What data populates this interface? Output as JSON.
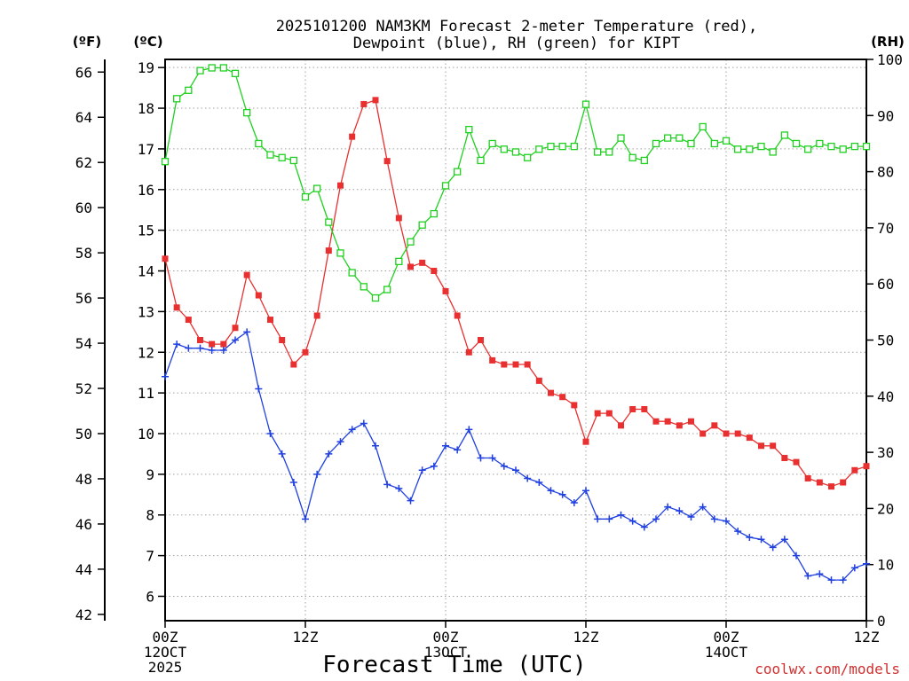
{
  "title_line1": "2025101200 NAM3KM Forecast 2-meter Temperature (red),",
  "title_line2": "Dewpoint (blue), RH (green) for KIPT",
  "credit": "coolwx.com/models",
  "chart_data": {
    "type": "line",
    "xlabel": "Forecast Time (UTC)",
    "x_hours": [
      0,
      1,
      2,
      3,
      4,
      5,
      6,
      7,
      8,
      9,
      10,
      11,
      12,
      13,
      14,
      15,
      16,
      17,
      18,
      19,
      20,
      21,
      22,
      23,
      24,
      25,
      26,
      27,
      28,
      29,
      30,
      31,
      32,
      33,
      34,
      35,
      36,
      37,
      38,
      39,
      40,
      41,
      42,
      43,
      44,
      45,
      46,
      47,
      48,
      49,
      50,
      51,
      52,
      53,
      54,
      55,
      56,
      57,
      58,
      59,
      60
    ],
    "xlim": [
      0,
      60
    ],
    "x_ticks": [
      {
        "hour": 0,
        "lines": [
          "00Z",
          "12OCT",
          "2025"
        ]
      },
      {
        "hour": 12,
        "lines": [
          "12Z"
        ]
      },
      {
        "hour": 24,
        "lines": [
          "00Z",
          "13OCT"
        ]
      },
      {
        "hour": 36,
        "lines": [
          "12Z"
        ]
      },
      {
        "hour": 48,
        "lines": [
          "00Z",
          "14OCT"
        ]
      },
      {
        "hour": 60,
        "lines": [
          "12Z"
        ]
      }
    ],
    "left_axis_c": {
      "label": "(ºC)",
      "ticks": [
        6,
        7,
        8,
        9,
        10,
        11,
        12,
        13,
        14,
        15,
        16,
        17,
        18,
        19
      ],
      "range": [
        5.4,
        19.2
      ]
    },
    "left_axis_f": {
      "label": "(ºF)",
      "ticks": [
        42,
        44,
        46,
        48,
        50,
        52,
        54,
        56,
        58,
        60,
        62,
        64,
        66
      ]
    },
    "right_axis": {
      "label": "(RH)",
      "ticks": [
        0,
        10,
        20,
        30,
        40,
        50,
        60,
        70,
        80,
        90,
        100
      ],
      "range": [
        0,
        100
      ]
    },
    "series": [
      {
        "name": "2-meter Temperature",
        "color": "#e83030",
        "axis": "C",
        "marker": "filled-square",
        "values": [
          14.3,
          13.1,
          12.8,
          12.3,
          12.2,
          12.2,
          12.6,
          13.9,
          13.4,
          12.8,
          12.3,
          11.7,
          12.0,
          12.9,
          14.5,
          16.1,
          17.3,
          18.1,
          18.2,
          16.7,
          15.3,
          14.1,
          14.2,
          14.0,
          13.5,
          12.9,
          12.0,
          12.3,
          11.8,
          11.7,
          11.7,
          11.7,
          11.3,
          11.0,
          10.9,
          10.7,
          9.8,
          10.5,
          10.5,
          10.2,
          10.6,
          10.6,
          10.3,
          10.3,
          10.2,
          10.3,
          10.0,
          10.2,
          10.0,
          10.0,
          9.9,
          9.7,
          9.7,
          9.4,
          9.3,
          8.9,
          8.8,
          8.7,
          8.8,
          9.1,
          9.2
        ]
      },
      {
        "name": "Dewpoint",
        "color": "#2040e0",
        "axis": "C",
        "marker": "plus",
        "values": [
          11.4,
          12.2,
          12.1,
          12.1,
          12.05,
          12.05,
          12.3,
          12.5,
          11.1,
          10.0,
          9.5,
          8.8,
          7.9,
          9.0,
          9.5,
          9.8,
          10.1,
          10.25,
          9.7,
          8.75,
          8.65,
          8.35,
          9.1,
          9.2,
          9.7,
          9.6,
          10.1,
          9.4,
          9.4,
          9.2,
          9.1,
          8.9,
          8.8,
          8.6,
          8.5,
          8.3,
          8.6,
          7.9,
          7.9,
          8.0,
          7.85,
          7.7,
          7.9,
          8.2,
          8.1,
          7.95,
          8.2,
          7.9,
          7.85,
          7.6,
          7.45,
          7.4,
          7.2,
          7.4,
          7.0,
          6.5,
          6.55,
          6.4,
          6.4,
          6.7,
          6.8
        ]
      },
      {
        "name": "RH",
        "color": "#20d020",
        "axis": "RH",
        "marker": "open-square",
        "values": [
          81.8,
          93.0,
          94.5,
          98.0,
          98.5,
          98.5,
          97.5,
          90.5,
          85.0,
          83.0,
          82.5,
          82.0,
          75.5,
          77.0,
          71.0,
          65.5,
          62.0,
          59.5,
          57.5,
          59.0,
          64.0,
          67.5,
          70.5,
          72.5,
          77.5,
          80.0,
          87.5,
          82.0,
          85.0,
          84.0,
          83.5,
          82.5,
          84.0,
          84.5,
          84.5,
          84.5,
          92.0,
          83.5,
          83.5,
          86.0,
          82.5,
          82.0,
          85.0,
          86.0,
          86.0,
          85.0,
          88.0,
          85.0,
          85.5,
          84.0,
          84.0,
          84.5,
          83.5,
          86.5,
          85.0,
          84.0,
          85.0,
          84.5,
          84.0,
          84.5,
          84.5
        ]
      }
    ]
  }
}
